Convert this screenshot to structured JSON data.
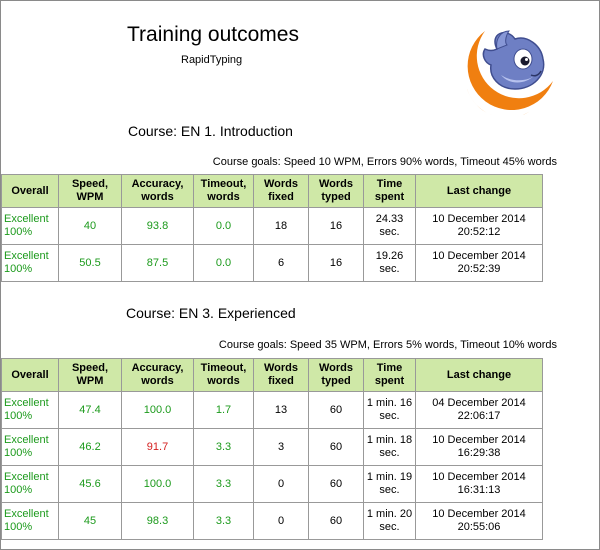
{
  "report": {
    "title": "Training outcomes",
    "subtitle": "RapidTyping"
  },
  "logo": {
    "icon": "fish-mascot-logo",
    "ring_color": "#f07f10",
    "fish_color": "#6e7fc4"
  },
  "headers": [
    "Overall",
    "Speed, WPM",
    "Accuracy, words",
    "Timeout, words",
    "Words fixed",
    "Words typed",
    "Time spent",
    "Last change"
  ],
  "colors": {
    "header_bg": "#cfe8a7",
    "good": "#1c9a1c",
    "bad": "#d41f1f"
  },
  "courses": [
    {
      "name": "Course: EN 1. Introduction",
      "goals": "Course goals: Speed 10 WPM, Errors 90% words, Timeout 45% words",
      "rows": [
        {
          "overall": "Excellent 100%",
          "speed": "40",
          "accuracy": "93.8",
          "accuracy_ok": true,
          "timeout": "0.0",
          "fixed": "18",
          "typed": "16",
          "time": "24.33 sec.",
          "last": "10 December 2014 20:52:12"
        },
        {
          "overall": "Excellent 100%",
          "speed": "50.5",
          "accuracy": "87.5",
          "accuracy_ok": true,
          "timeout": "0.0",
          "fixed": "6",
          "typed": "16",
          "time": "19.26 sec.",
          "last": "10 December 2014 20:52:39"
        }
      ]
    },
    {
      "name": "Course: EN 3. Experienced",
      "goals": "Course goals: Speed 35 WPM, Errors 5% words, Timeout 10% words",
      "rows": [
        {
          "overall": "Excellent 100%",
          "speed": "47.4",
          "accuracy": "100.0",
          "accuracy_ok": true,
          "timeout": "1.7",
          "fixed": "13",
          "typed": "60",
          "time": "1 min. 16 sec.",
          "last": "04 December 2014 22:06:17"
        },
        {
          "overall": "Excellent 100%",
          "speed": "46.2",
          "accuracy": "91.7",
          "accuracy_ok": false,
          "timeout": "3.3",
          "fixed": "3",
          "typed": "60",
          "time": "1 min. 18 sec.",
          "last": "10 December 2014 16:29:38"
        },
        {
          "overall": "Excellent 100%",
          "speed": "45.6",
          "accuracy": "100.0",
          "accuracy_ok": true,
          "timeout": "3.3",
          "fixed": "0",
          "typed": "60",
          "time": "1 min. 19 sec.",
          "last": "10 December 2014 16:31:13"
        },
        {
          "overall": "Excellent 100%",
          "speed": "45",
          "accuracy": "98.3",
          "accuracy_ok": true,
          "timeout": "3.3",
          "fixed": "0",
          "typed": "60",
          "time": "1 min. 20 sec.",
          "last": "10 December 2014 20:55:06"
        }
      ]
    }
  ]
}
